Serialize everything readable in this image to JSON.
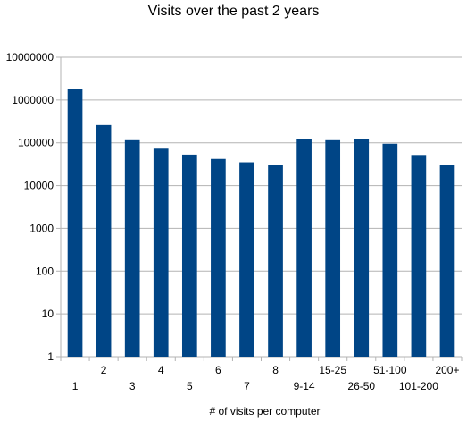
{
  "chart_data": {
    "type": "bar",
    "title": "Visits over the past 2 years",
    "xlabel": "# of visits per computer",
    "ylabel": "",
    "yscale": "log",
    "ylim": [
      1,
      10000000
    ],
    "yticks": [
      "1",
      "10",
      "100",
      "1000",
      "10000",
      "100000",
      "1000000",
      "10000000"
    ],
    "grid": true,
    "legend": "none",
    "bar_color": "#004586",
    "categories": [
      "1",
      "2",
      "3",
      "4",
      "5",
      "6",
      "7",
      "8",
      "9-14",
      "15-25",
      "26-50",
      "51-100",
      "101-200",
      "200+"
    ],
    "values": [
      1800000,
      260000,
      115000,
      73000,
      53000,
      42000,
      35000,
      30000,
      120000,
      115000,
      125000,
      95000,
      52000,
      30000
    ]
  }
}
